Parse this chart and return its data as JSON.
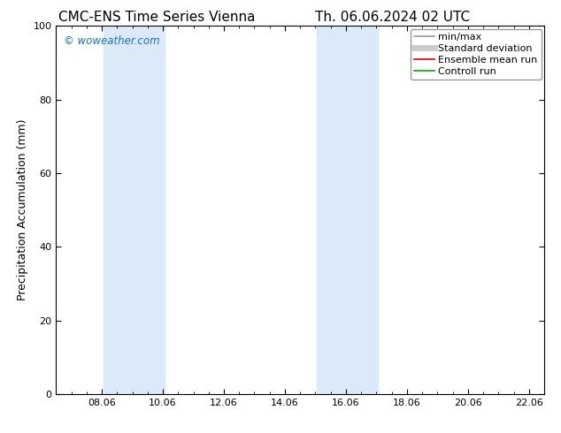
{
  "title_left": "CMC-ENS Time Series Vienna",
  "title_right": "Th. 06.06.2024 02 UTC",
  "ylabel": "Precipitation Accumulation (mm)",
  "xlabel": "",
  "xlim": [
    6.5,
    22.5
  ],
  "ylim": [
    0,
    100
  ],
  "xtick_labels": [
    "08.06",
    "10.06",
    "12.06",
    "14.06",
    "16.06",
    "18.06",
    "20.06",
    "22.06"
  ],
  "xtick_values": [
    8.0,
    10.0,
    12.0,
    14.0,
    16.0,
    18.0,
    20.0,
    22.0
  ],
  "ytick_values": [
    0,
    20,
    40,
    60,
    80,
    100
  ],
  "shaded_bands": [
    {
      "x_start": 8.06,
      "x_end": 10.06
    },
    {
      "x_start": 15.06,
      "x_end": 17.06
    }
  ],
  "shaded_color": "#daeaf8",
  "watermark_text": "© woweather.com",
  "watermark_color": "#1a6fb5",
  "legend_items": [
    {
      "label": "min/max",
      "color": "#999999",
      "lw": 1.2,
      "style": "solid"
    },
    {
      "label": "Standard deviation",
      "color": "#cccccc",
      "lw": 5,
      "style": "solid"
    },
    {
      "label": "Ensemble mean run",
      "color": "#dd0000",
      "lw": 1.2,
      "style": "solid"
    },
    {
      "label": "Controll run",
      "color": "#00aa00",
      "lw": 1.2,
      "style": "solid"
    }
  ],
  "background_color": "#ffffff",
  "title_fontsize": 11,
  "tick_fontsize": 8,
  "ylabel_fontsize": 9,
  "legend_fontsize": 8
}
